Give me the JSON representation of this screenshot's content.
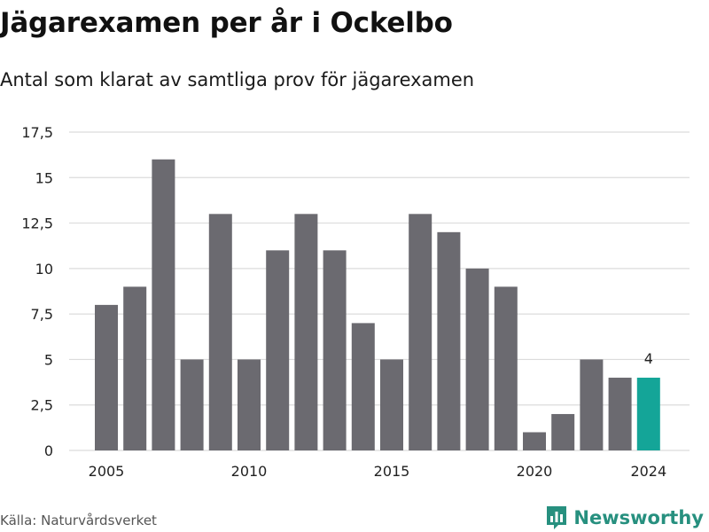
{
  "header": {
    "title": "Jägarexamen per år i Ockelbo",
    "subtitle": "Antal som klarat av samtliga prov för jägarexamen"
  },
  "footer": {
    "source": "Källa: Naturvårdsverket",
    "brand": "Newsworthy",
    "brand_icon": "bar-chart-logo-icon"
  },
  "colors": {
    "bar": "#6b6a70",
    "highlight": "#14a598",
    "grid": "#dcdcdc",
    "brand": "#27907f"
  },
  "chart_data": {
    "type": "bar",
    "title": "Jägarexamen per år i Ockelbo",
    "subtitle": "Antal som klarat av samtliga prov för jägarexamen",
    "xlabel": "",
    "ylabel": "",
    "x": [
      2005,
      2006,
      2007,
      2008,
      2009,
      2010,
      2011,
      2012,
      2013,
      2014,
      2015,
      2016,
      2017,
      2018,
      2019,
      2020,
      2021,
      2022,
      2023,
      2024
    ],
    "values": [
      8,
      9,
      16,
      5,
      13,
      5,
      11,
      13,
      11,
      7,
      5,
      13,
      12,
      10,
      9,
      1,
      2,
      5,
      4,
      4
    ],
    "highlight_x": 2024,
    "data_labels": [
      {
        "x": 2024,
        "text": "4"
      }
    ],
    "ylim": [
      0,
      17.5
    ],
    "yticks": [
      0,
      2.5,
      5,
      7.5,
      10,
      12.5,
      15,
      17.5
    ],
    "ytick_labels": [
      "0",
      "2,5",
      "5",
      "7,5",
      "10",
      "12,5",
      "15",
      "17,5"
    ],
    "xticks": [
      2005,
      2010,
      2015,
      2020,
      2024
    ],
    "xtick_labels": [
      "2005",
      "2010",
      "2015",
      "2020",
      "2024"
    ],
    "grid": true,
    "legend": "none"
  }
}
